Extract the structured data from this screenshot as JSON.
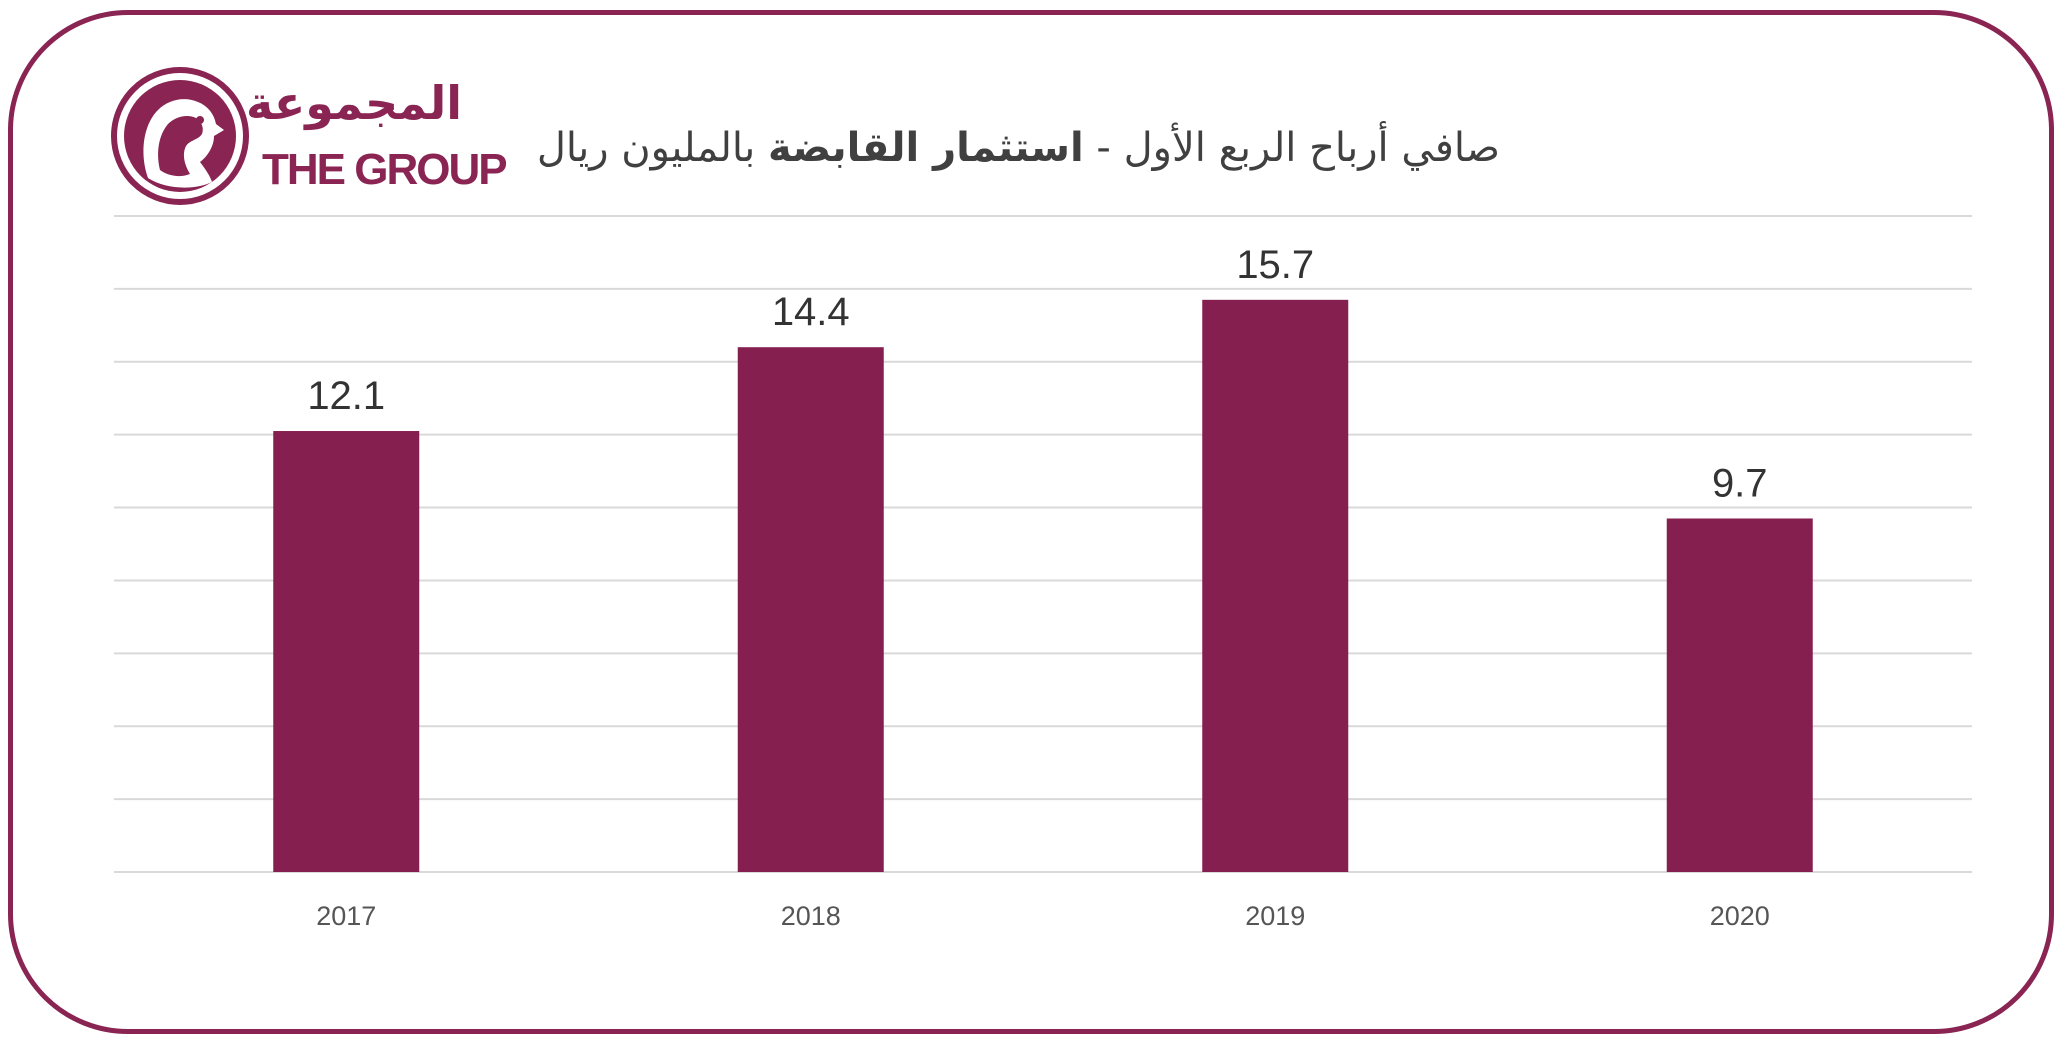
{
  "logo": {
    "arabic_text": "المجموعة",
    "english_text": "THE GROUP",
    "icon": "falcon-emblem-icon"
  },
  "title": {
    "part1": "صافي أرباح الربع الأول - ",
    "part2_bold": "استثمار القابضة",
    "part3": " بالمليون ريال"
  },
  "colors": {
    "frame": "#8a2452",
    "bar": "#851f50",
    "grid": "#d9d9d9"
  },
  "chart_data": {
    "type": "bar",
    "title": "صافي أرباح الربع الأول - استثمار القابضة بالمليون ريال",
    "categories": [
      "2017",
      "2018",
      "2019",
      "2020"
    ],
    "values": [
      12.1,
      14.4,
      15.7,
      9.7
    ],
    "data_labels": [
      "12.1",
      "14.4",
      "15.7",
      "9.7"
    ],
    "xlabel": "",
    "ylabel": "",
    "ylim": [
      0,
      18
    ],
    "grid": true,
    "legend": "none"
  }
}
